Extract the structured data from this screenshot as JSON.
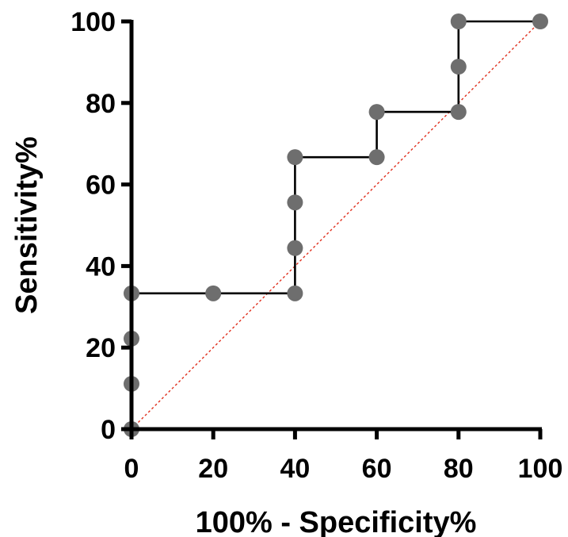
{
  "chart_data": {
    "type": "line",
    "title": "",
    "xlabel": "100% - Specificity%",
    "ylabel": "Sensitivity%",
    "xlim": [
      0,
      100
    ],
    "ylim": [
      0,
      100
    ],
    "x_ticks": [
      0,
      20,
      40,
      60,
      80,
      100
    ],
    "y_ticks": [
      0,
      20,
      40,
      60,
      80,
      100
    ],
    "grid": false,
    "legend": "none",
    "series": [
      {
        "style": "step",
        "color": "#000000",
        "marker_color": "#6e6e6e",
        "points": [
          {
            "x": 0,
            "y": 0
          },
          {
            "x": 0,
            "y": 11.1
          },
          {
            "x": 0,
            "y": 22.2
          },
          {
            "x": 0,
            "y": 33.3
          },
          {
            "x": 20,
            "y": 33.3
          },
          {
            "x": 40,
            "y": 33.3
          },
          {
            "x": 40,
            "y": 44.4
          },
          {
            "x": 40,
            "y": 55.6
          },
          {
            "x": 40,
            "y": 66.7
          },
          {
            "x": 60,
            "y": 66.7
          },
          {
            "x": 60,
            "y": 77.8
          },
          {
            "x": 80,
            "y": 77.8
          },
          {
            "x": 80,
            "y": 88.9
          },
          {
            "x": 80,
            "y": 100
          },
          {
            "x": 100,
            "y": 100
          }
        ]
      }
    ],
    "reference_line": {
      "from": [
        0,
        0
      ],
      "to": [
        100,
        100
      ],
      "style": "dotted",
      "color": "#e0301e"
    }
  }
}
